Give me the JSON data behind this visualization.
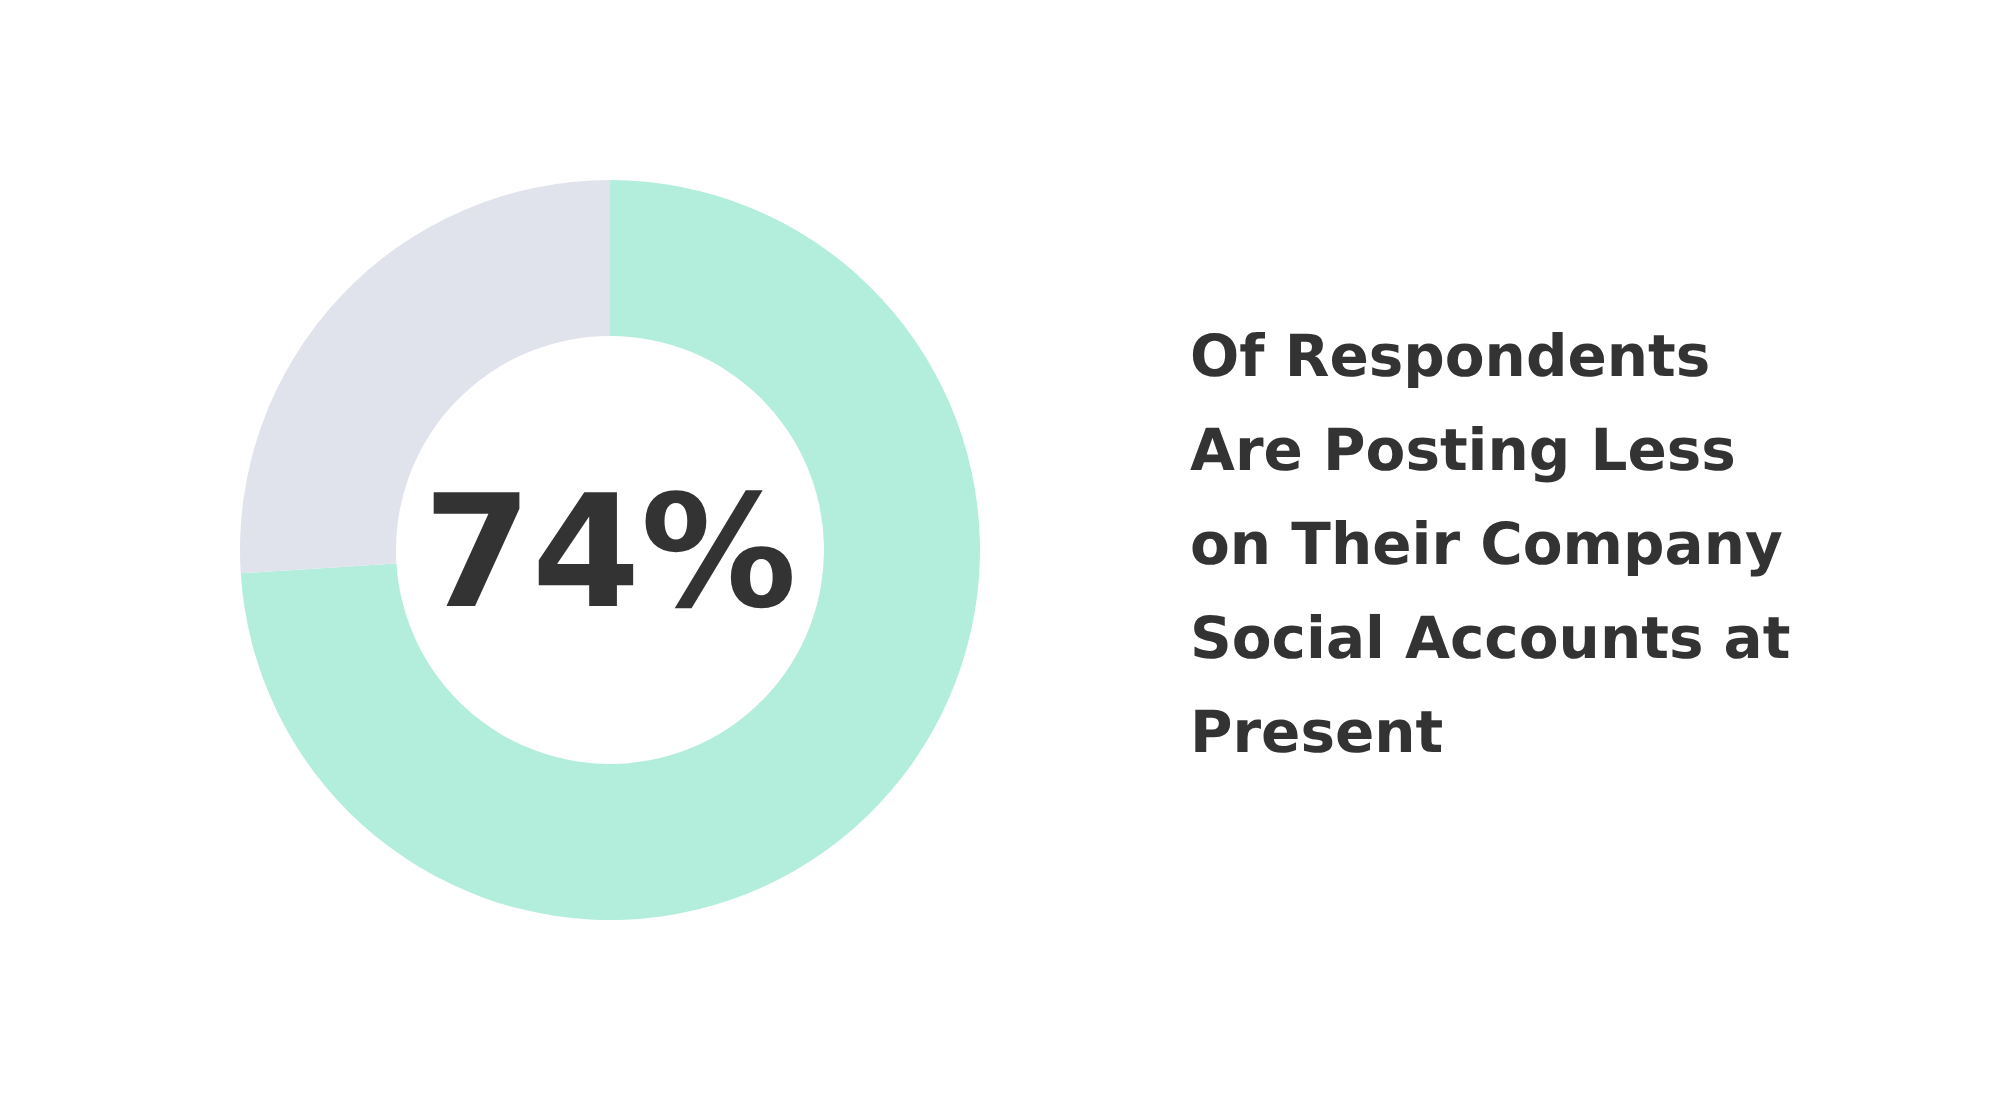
{
  "chart_data": {
    "type": "donut",
    "title": "Of Respondents\nAre Posting Less\non Their Company\nSocial Accounts at\nPresent",
    "categories": [
      null,
      null
    ],
    "values": [
      74,
      26
    ],
    "colors": [
      "#b3eddc",
      "#e1e3ec"
    ],
    "value_labels": [
      "74%",
      null
    ]
  }
}
